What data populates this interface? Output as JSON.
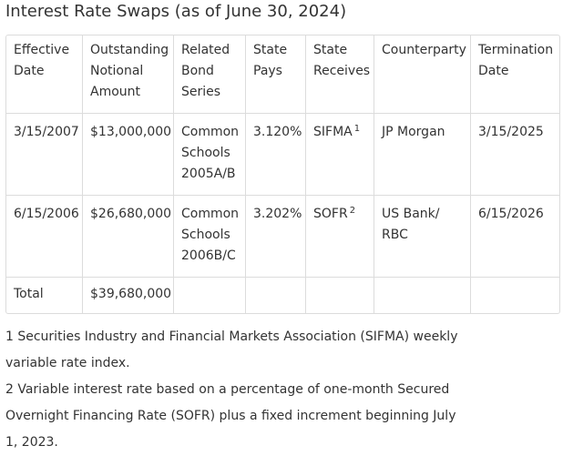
{
  "title": "Interest Rate Swaps (as of June 30, 2024)",
  "table": {
    "headers": [
      "Effective Date",
      "Outstanding Notional Amount",
      "Related Bond Series",
      "State Pays",
      "State Receives",
      "Counterparty",
      "Termination Date"
    ],
    "rows": [
      {
        "effective_date": "3/15/2007",
        "notional": "$13,000,000",
        "bond_series": "Common Schools 2005A/B",
        "state_pays": "3.120%",
        "state_receives": "SIFMA",
        "receives_note": "1",
        "counterparty": "JP Morgan",
        "termination_date": "3/15/2025"
      },
      {
        "effective_date": "6/15/2006",
        "notional": "$26,680,000",
        "bond_series": "Common Schools 2006B/C",
        "state_pays": "3.202%",
        "state_receives": "SOFR",
        "receives_note": "2",
        "counterparty": "US Bank/ RBC",
        "termination_date": "6/15/2026"
      }
    ],
    "total": {
      "label": "Total",
      "notional": "$39,680,000"
    }
  },
  "footnotes": [
    "1 Securities Industry and Financial Markets Association (SIFMA) weekly variable rate index.",
    "2 Variable interest rate based on a percentage of one-month Secured Overnight Financing Rate (SOFR) plus a fixed increment beginning July 1, 2023."
  ]
}
